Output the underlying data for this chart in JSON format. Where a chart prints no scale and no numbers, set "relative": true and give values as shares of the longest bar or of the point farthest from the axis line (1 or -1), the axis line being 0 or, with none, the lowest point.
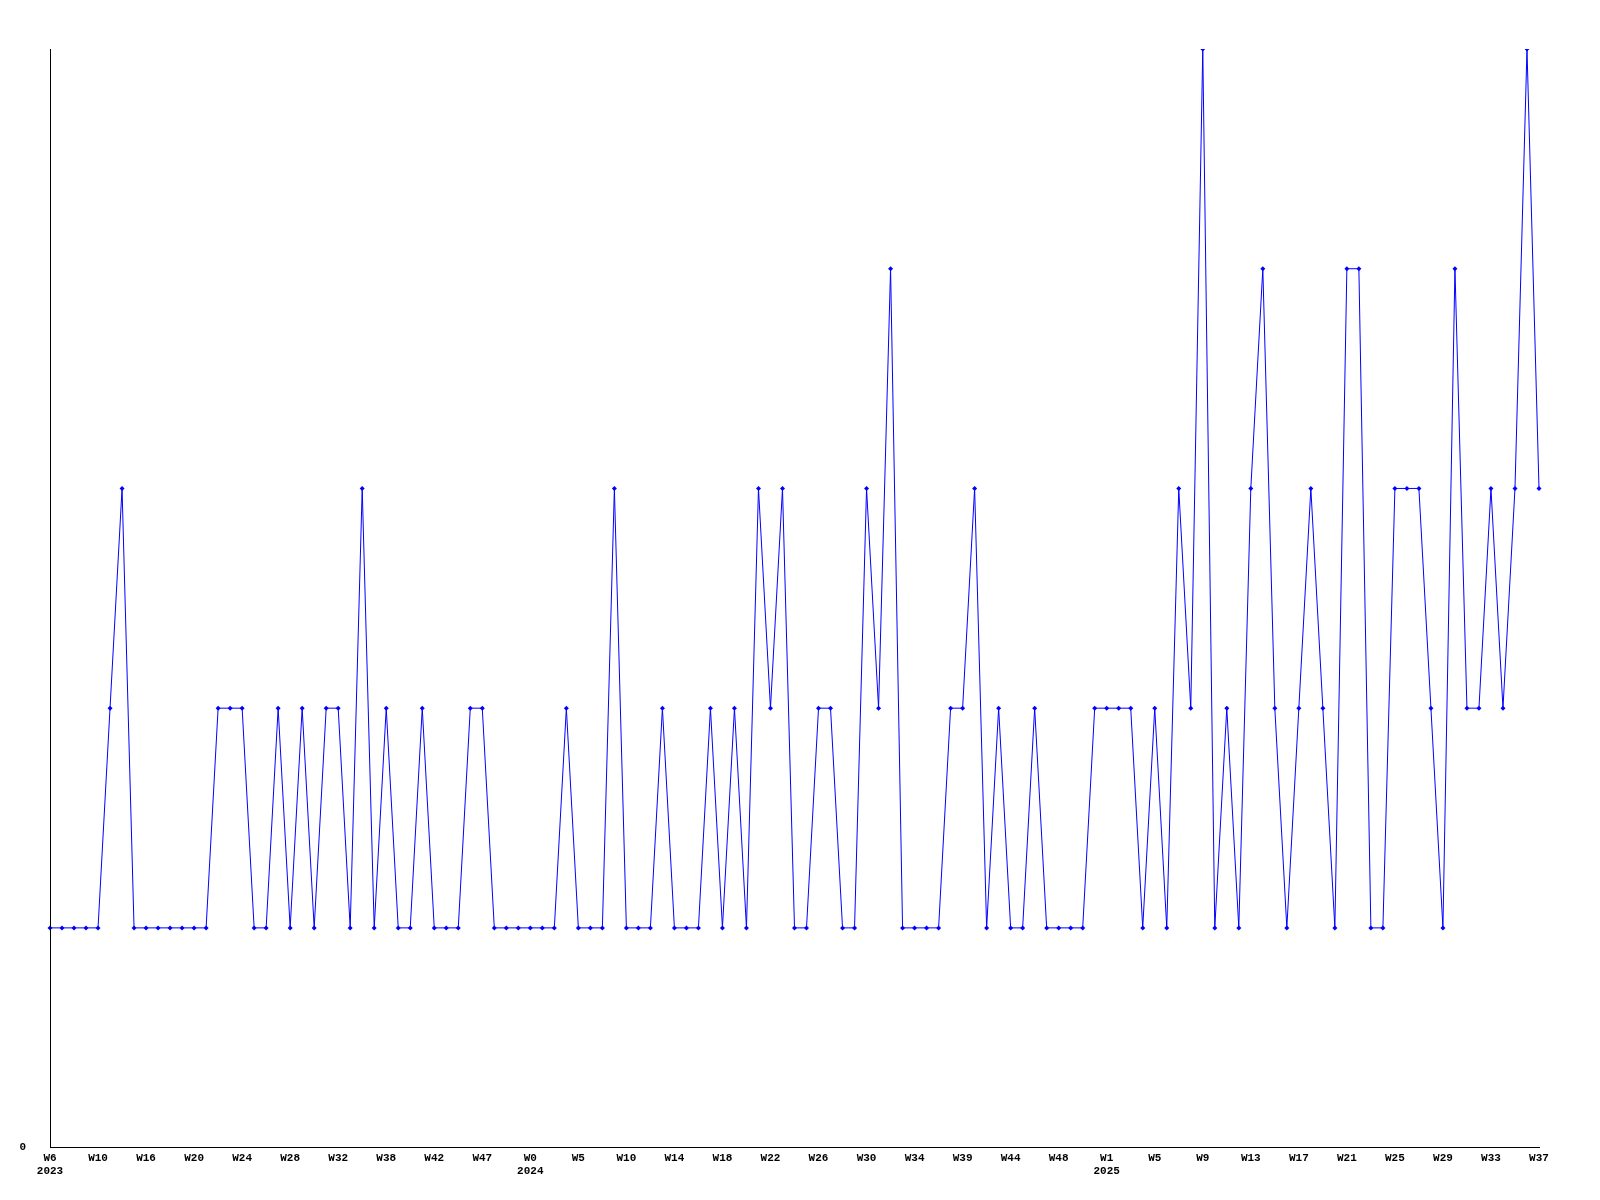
{
  "chart_data": {
    "type": "line",
    "relative": true,
    "color": "#0000ff",
    "marker": "diamond",
    "line_style": "solid",
    "grid": false,
    "legend": false,
    "annotations": [
      "0"
    ],
    "categories": [
      "W6\n2023",
      null,
      null,
      null,
      "W10",
      null,
      null,
      null,
      "W16",
      null,
      null,
      null,
      "W20",
      null,
      null,
      null,
      "W24",
      null,
      null,
      null,
      "W28",
      null,
      null,
      null,
      "W32",
      null,
      null,
      null,
      "W38",
      null,
      null,
      null,
      "W42",
      null,
      null,
      null,
      "W47",
      null,
      null,
      null,
      "W0\n2024",
      null,
      null,
      null,
      "W5",
      null,
      null,
      null,
      "W10",
      null,
      null,
      null,
      "W14",
      null,
      null,
      null,
      "W18",
      null,
      null,
      null,
      "W22",
      null,
      null,
      null,
      "W26",
      null,
      null,
      null,
      "W30",
      null,
      null,
      null,
      "W34",
      null,
      null,
      null,
      "W39",
      null,
      null,
      null,
      "W44",
      null,
      null,
      null,
      "W48",
      null,
      null,
      null,
      "W1\n2025",
      null,
      null,
      null,
      "W5",
      null,
      null,
      null,
      "W9",
      null,
      null,
      null,
      "W13",
      null,
      null,
      null,
      "W17",
      null,
      null,
      null,
      "W21",
      null,
      null,
      null,
      "W25",
      null,
      null,
      null,
      "W29",
      null,
      null,
      null,
      "W33",
      null,
      null,
      null,
      "W37"
    ],
    "values": [
      0.2,
      0.2,
      0.2,
      0.2,
      0.2,
      0.4,
      0.6,
      0.2,
      0.2,
      0.2,
      0.2,
      0.2,
      0.2,
      0.2,
      0.4,
      0.4,
      0.4,
      0.2,
      0.2,
      0.4,
      0.2,
      0.4,
      0.2,
      0.4,
      0.4,
      0.2,
      0.6,
      0.2,
      0.4,
      0.2,
      0.2,
      0.4,
      0.2,
      0.2,
      0.2,
      0.4,
      0.4,
      0.2,
      0.2,
      0.2,
      0.2,
      0.2,
      0.2,
      0.4,
      0.2,
      0.2,
      0.2,
      0.6,
      0.2,
      0.2,
      0.2,
      0.4,
      0.2,
      0.2,
      0.2,
      0.4,
      0.2,
      0.4,
      0.2,
      0.6,
      0.4,
      0.6,
      0.2,
      0.2,
      0.4,
      0.4,
      0.2,
      0.2,
      0.6,
      0.4,
      0.8,
      0.2,
      0.2,
      0.2,
      0.2,
      0.4,
      0.4,
      0.6,
      0.2,
      0.4,
      0.2,
      0.2,
      0.4,
      0.2,
      0.2,
      0.2,
      0.2,
      0.4,
      0.4,
      0.4,
      0.4,
      0.2,
      0.4,
      0.2,
      0.6,
      0.4,
      1,
      0.2,
      0.4,
      0.2,
      0.6,
      0.8,
      0.4,
      0.2,
      0.4,
      0.6,
      0.4,
      0.2,
      0.8,
      0.8,
      0.2,
      0.2,
      0.6,
      0.6,
      0.6,
      0.4,
      0.2,
      0.8,
      0.4,
      0.4,
      0.6,
      0.4,
      0.6,
      1,
      0.6
    ]
  }
}
